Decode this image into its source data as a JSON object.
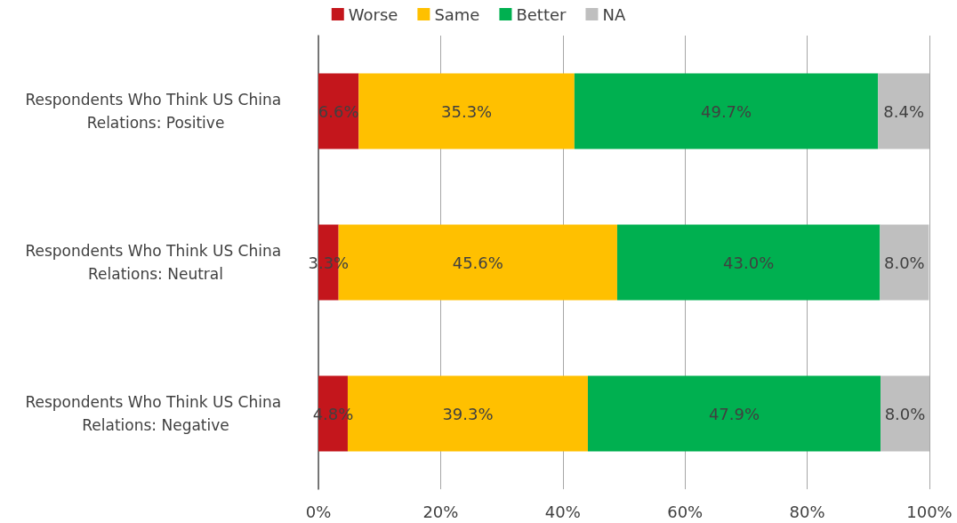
{
  "chart_data": {
    "type": "bar",
    "orientation": "horizontal",
    "stacked": true,
    "categories": [
      "Respondents Who Think US China Relations: Positive",
      "Respondents Who Think US China Relations: Neutral",
      "Respondents Who Think US China Relations: Negative"
    ],
    "series": [
      {
        "name": "Worse",
        "color": "#c4161c",
        "values": [
          6.6,
          3.3,
          4.8
        ],
        "value_labels": [
          "6.6%",
          "3.3%",
          "4.8%"
        ]
      },
      {
        "name": "Same",
        "color": "#ffc000",
        "values": [
          35.3,
          45.6,
          39.3
        ],
        "value_labels": [
          "35.3%",
          "45.6%",
          "39.3%"
        ]
      },
      {
        "name": "Better",
        "color": "#00b050",
        "values": [
          49.7,
          43.0,
          47.9
        ],
        "value_labels": [
          "49.7%",
          "43.0%",
          "47.9%"
        ]
      },
      {
        "name": "NA",
        "color": "#bfbfbf",
        "values": [
          8.4,
          8.0,
          8.0
        ],
        "value_labels": [
          "8.4%",
          "8.0%",
          "8.0%"
        ]
      }
    ],
    "xlim": [
      0,
      100
    ],
    "xticks": [
      {
        "value": 0,
        "label": "0%"
      },
      {
        "value": 20,
        "label": "20%"
      },
      {
        "value": 40,
        "label": "40%"
      },
      {
        "value": 60,
        "label": "60%"
      },
      {
        "value": 80,
        "label": "80%"
      },
      {
        "value": 100,
        "label": "100%"
      }
    ],
    "grid": "x",
    "legend": "top"
  }
}
